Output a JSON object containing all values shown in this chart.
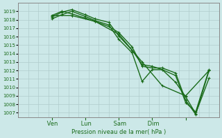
{
  "xlabel": "Pression niveau de la mer( hPa )",
  "ylim": [
    1006.5,
    1020.0
  ],
  "yticks": [
    1007,
    1008,
    1009,
    1010,
    1011,
    1012,
    1013,
    1014,
    1015,
    1016,
    1017,
    1018,
    1019
  ],
  "xlim": [
    0,
    6
  ],
  "xtick_positions": [
    1,
    2,
    3,
    4,
    5
  ],
  "xtick_labels": [
    " Ven",
    " Lun",
    " Sam",
    " Dim",
    ""
  ],
  "background_color": "#cce8e8",
  "grid_color": "#b0cccc",
  "line_color": "#1a6b1a",
  "series": [
    {
      "x": [
        1.0,
        1.3,
        1.6,
        2.0,
        2.3,
        2.7,
        3.0,
        3.4,
        3.7,
        4.0,
        4.3,
        4.7,
        5.0,
        5.3,
        5.7
      ],
      "y": [
        1018.5,
        1019.0,
        1018.7,
        1018.2,
        1017.8,
        1017.2,
        1016.5,
        1014.8,
        1012.5,
        1012.3,
        1012.3,
        1011.7,
        1008.5,
        1006.8,
        1012.0
      ]
    },
    {
      "x": [
        1.0,
        1.3,
        1.6,
        2.0,
        2.3,
        2.7,
        3.0,
        3.4,
        3.7,
        4.0,
        4.3,
        4.7,
        5.0,
        5.3,
        5.7
      ],
      "y": [
        1018.3,
        1018.9,
        1019.2,
        1018.6,
        1018.1,
        1017.7,
        1016.1,
        1014.4,
        1012.7,
        1012.5,
        1012.1,
        1010.6,
        1008.9,
        1006.9,
        1011.1
      ]
    },
    {
      "x": [
        1.0,
        1.3,
        1.6,
        2.0,
        2.3,
        2.7,
        3.0,
        3.4,
        3.7,
        4.0,
        4.3,
        4.7,
        5.0,
        5.3,
        5.7
      ],
      "y": [
        1018.1,
        1018.6,
        1019.0,
        1018.4,
        1017.9,
        1017.4,
        1015.7,
        1014.1,
        1010.7,
        1012.1,
        1012.1,
        1011.4,
        1008.2,
        1007.1,
        1012.1
      ]
    },
    {
      "x": [
        1.0,
        1.6,
        2.3,
        3.0,
        3.7,
        4.3,
        5.0,
        5.7
      ],
      "y": [
        1018.5,
        1018.5,
        1017.8,
        1016.3,
        1013.0,
        1010.2,
        1009.0,
        1012.0
      ]
    }
  ]
}
